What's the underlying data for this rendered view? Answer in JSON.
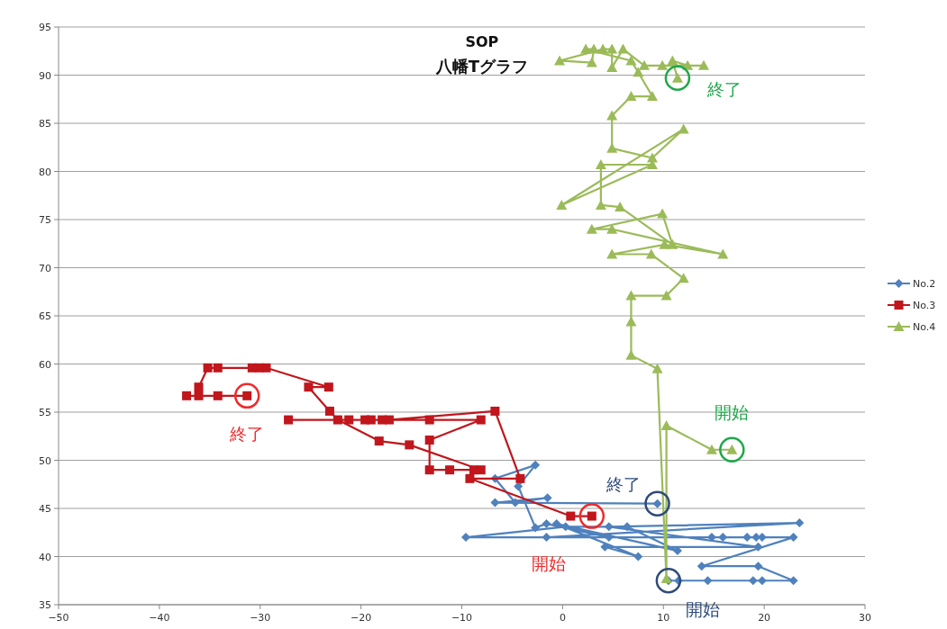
{
  "chart_data": {
    "type": "line",
    "title": "SOP",
    "subtitle": "八幡Tグラフ",
    "xlim": [
      -50,
      30
    ],
    "xticks": [
      -50,
      -40,
      -30,
      -20,
      -10,
      0,
      10,
      20,
      30
    ],
    "ylim": [
      35,
      95
    ],
    "yticks": [
      35,
      40,
      45,
      50,
      55,
      60,
      65,
      70,
      75,
      80,
      85,
      90,
      95
    ],
    "grid": "y",
    "legend": "right",
    "series": [
      {
        "name": "No.2",
        "color": "#4f81bd",
        "marker": "diamond",
        "x": [
          10.5,
          11.5,
          14.4,
          18.9,
          19.8,
          22.9,
          19.4,
          13.8,
          22.9,
          19.8,
          19.2,
          18.3,
          15.9,
          14.8,
          -1.6,
          23.5,
          4.6,
          19.4,
          4.2,
          7.5,
          -0.6,
          11.4,
          6.4,
          0.3,
          -9.6,
          4.6,
          -1.6,
          -2.7,
          -4.4,
          -2.7,
          -6.7,
          -4.7,
          -1.5,
          -6.7,
          9.4
        ],
        "values": [
          37.5,
          37.5,
          37.5,
          37.5,
          37.5,
          37.5,
          39.0,
          39.0,
          42.0,
          42.0,
          42.0,
          42.0,
          42.0,
          42.0,
          42.0,
          43.5,
          43.1,
          41.0,
          41.0,
          40.0,
          43.4,
          40.6,
          43.1,
          43.1,
          42.0,
          42.0,
          43.4,
          43.0,
          47.3,
          49.5,
          48.1,
          45.6,
          46.1,
          45.6,
          45.5
        ]
      },
      {
        "name": "No.3",
        "color": "#c0161c",
        "marker": "square",
        "x": [
          2.9,
          0.8,
          -9.2,
          -4.2,
          -6.7,
          -17.2,
          -17.9,
          -19.0,
          -19.6,
          -21.2,
          -27.2,
          -13.2,
          -8.1,
          -13.2,
          -13.2,
          -11.2,
          -8.8,
          -8.1,
          -15.2,
          -18.2,
          -22.3,
          -23.1,
          -25.2,
          -23.2,
          -29.4,
          -30.1,
          -30.8,
          -34.2,
          -35.2,
          -36.1,
          -36.1,
          -37.3,
          -34.2,
          -31.3
        ],
        "values": [
          44.2,
          44.2,
          48.1,
          48.1,
          55.1,
          54.2,
          54.2,
          54.2,
          54.2,
          54.2,
          54.2,
          54.2,
          54.2,
          52.1,
          49.0,
          49.0,
          49.0,
          49.0,
          51.6,
          52.0,
          54.2,
          55.1,
          57.6,
          57.6,
          59.6,
          59.6,
          59.6,
          59.6,
          59.6,
          57.6,
          56.7,
          56.7,
          56.7,
          56.7
        ]
      },
      {
        "name": "No.4",
        "color": "#9bbb59",
        "marker": "triangle",
        "x": [
          16.8,
          14.8,
          10.3,
          10.3,
          9.4,
          6.8,
          6.8,
          6.8,
          10.3,
          12.0,
          8.8,
          4.9,
          10.1,
          15.9,
          4.9,
          2.9,
          9.9,
          10.9,
          5.7,
          3.8,
          3.8,
          8.9,
          -0.1,
          12.0,
          8.9,
          4.9,
          4.9,
          6.8,
          8.9,
          7.5,
          6.8,
          2.3,
          3.1,
          2.9,
          -0.3,
          4.0,
          4.9,
          4.9,
          6.0,
          8.1,
          9.9,
          14.0,
          12.4,
          10.9,
          11.4
        ],
        "values": [
          51.1,
          51.1,
          53.6,
          37.7,
          59.5,
          60.9,
          64.4,
          67.1,
          67.1,
          68.9,
          71.4,
          71.4,
          72.4,
          71.4,
          74.0,
          74.0,
          75.6,
          72.4,
          76.3,
          76.5,
          80.7,
          80.7,
          76.5,
          84.4,
          81.4,
          82.4,
          85.8,
          87.8,
          87.8,
          90.3,
          91.5,
          92.7,
          92.7,
          91.3,
          91.5,
          92.7,
          92.7,
          90.8,
          92.7,
          91.0,
          91.0,
          91.0,
          91.0,
          91.5,
          89.7
        ]
      }
    ],
    "annotations": [
      {
        "text": "終了",
        "x": -31.3,
        "y": 56.7
      },
      {
        "text": "開始",
        "x": 2.9,
        "y": 44.2
      },
      {
        "text": "終了",
        "x": 9.4,
        "y": 45.5
      },
      {
        "text": "開始",
        "x": 10.5,
        "y": 37.5
      },
      {
        "text": "開始",
        "x": 16.8,
        "y": 51.1
      },
      {
        "text": "終了",
        "x": 11.4,
        "y": 89.7
      }
    ]
  }
}
